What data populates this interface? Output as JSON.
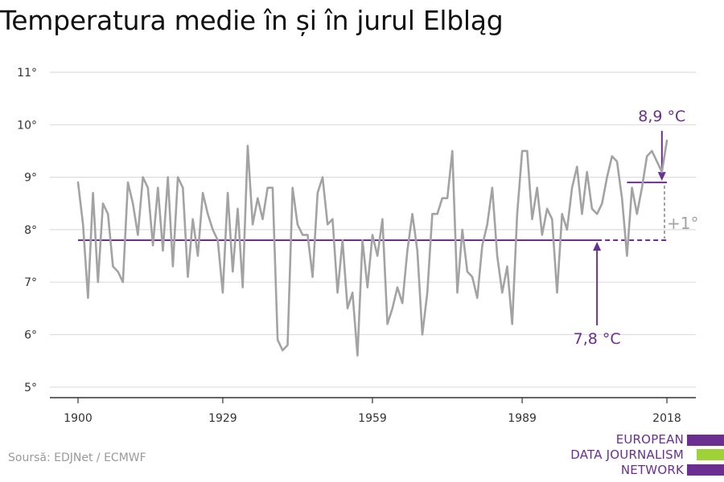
{
  "title": "Temperatura medie în și în jurul Elbląg",
  "source": "Soursă: EDJNet / ECMWF",
  "logo": {
    "lines": [
      "EUROPEAN",
      "DATA JOURNALISM",
      "NETWORK"
    ],
    "colors": [
      "#6b2f91",
      "#9fd236",
      "#6b2f91"
    ]
  },
  "colors": {
    "series": "#a3a3a3",
    "reference": "#6b2f91",
    "delta": "#a3a3a3",
    "grid": "#dddddd"
  },
  "chart_data": {
    "type": "line",
    "title": "Temperatura medie în și în jurul Elbląg",
    "xlabel": "",
    "ylabel": "",
    "xlim": [
      1900,
      2018
    ],
    "ylim": [
      5,
      11
    ],
    "x_ticks": [
      1900,
      1929,
      1959,
      1989,
      2018
    ],
    "y_ticks": [
      5,
      6,
      7,
      8,
      9,
      10,
      11
    ],
    "y_tick_labels": [
      "5°",
      "6°",
      "7°",
      "8°",
      "9°",
      "10°",
      "11°"
    ],
    "grid": true,
    "legend": "none",
    "series": [
      {
        "x": [
          1900,
          1901,
          1902,
          1903,
          1904,
          1905,
          1906,
          1907,
          1908,
          1909,
          1910,
          1911,
          1912,
          1913,
          1914,
          1915,
          1916,
          1917,
          1918,
          1919,
          1920,
          1921,
          1922,
          1923,
          1924,
          1925,
          1926,
          1927,
          1928,
          1929,
          1930,
          1931,
          1932,
          1933,
          1934,
          1935,
          1936,
          1937,
          1938,
          1939,
          1940,
          1941,
          1942,
          1943,
          1944,
          1945,
          1946,
          1947,
          1948,
          1949,
          1950,
          1951,
          1952,
          1953,
          1954,
          1955,
          1956,
          1957,
          1958,
          1959,
          1960,
          1961,
          1962,
          1963,
          1964,
          1965,
          1966,
          1967,
          1968,
          1969,
          1970,
          1971,
          1972,
          1973,
          1974,
          1975,
          1976,
          1977,
          1978,
          1979,
          1980,
          1981,
          1982,
          1983,
          1984,
          1985,
          1986,
          1987,
          1988,
          1989,
          1990,
          1991,
          1992,
          1993,
          1994,
          1995,
          1996,
          1997,
          1998,
          1999,
          2000,
          2001,
          2002,
          2003,
          2004,
          2005,
          2006,
          2007,
          2008,
          2009,
          2010,
          2011,
          2012,
          2013,
          2014,
          2015,
          2016,
          2017,
          2018
        ],
        "values": [
          8.9,
          8.1,
          6.7,
          8.7,
          7.0,
          8.5,
          8.3,
          7.3,
          7.2,
          7.0,
          8.9,
          8.5,
          7.9,
          9.0,
          8.8,
          7.7,
          8.8,
          7.6,
          9.0,
          7.3,
          9.0,
          8.8,
          7.1,
          8.2,
          7.5,
          8.7,
          8.3,
          8.0,
          7.8,
          6.8,
          8.7,
          7.2,
          8.4,
          6.9,
          9.6,
          8.1,
          8.6,
          8.2,
          8.8,
          8.8,
          5.9,
          5.7,
          5.8,
          8.8,
          8.1,
          7.9,
          7.9,
          7.1,
          8.7,
          9.0,
          8.1,
          8.2,
          6.8,
          7.8,
          6.5,
          6.8,
          5.6,
          7.8,
          6.9,
          7.9,
          7.5,
          8.2,
          6.2,
          6.5,
          6.9,
          6.6,
          7.6,
          8.3,
          7.6,
          6.0,
          6.8,
          8.3,
          8.3,
          8.6,
          8.6,
          9.5,
          6.8,
          8.0,
          7.2,
          7.1,
          6.7,
          7.7,
          8.1,
          8.8,
          7.5,
          6.8,
          7.3,
          6.2,
          8.3,
          9.5,
          9.5,
          8.2,
          8.8,
          7.9,
          8.4,
          8.2,
          6.8,
          8.3,
          8.0,
          8.8,
          9.2,
          8.3,
          9.1,
          8.4,
          8.3,
          8.5,
          9.0,
          9.4,
          9.3,
          8.6,
          7.5,
          8.8,
          8.3,
          8.8,
          9.4,
          9.5,
          9.3,
          9.1,
          9.7
        ]
      }
    ],
    "reference": {
      "baseline": 7.8,
      "baseline_label": "7,8 °C",
      "recent": 8.9,
      "recent_label": "8,9 °C",
      "recent_start": 2010,
      "delta_label": "+1°"
    }
  }
}
